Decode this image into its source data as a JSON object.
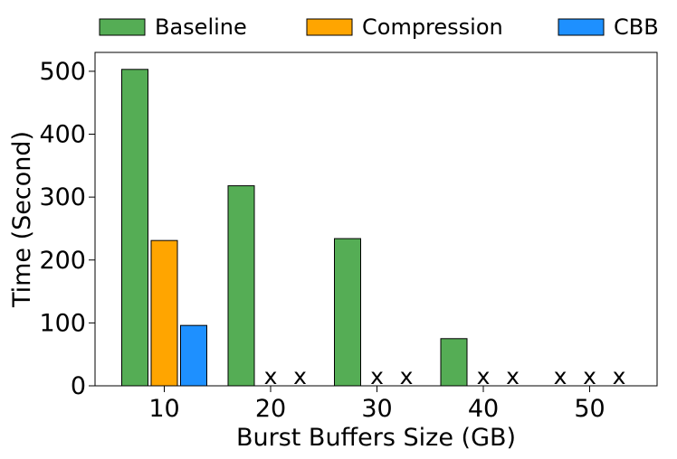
{
  "chart_data": {
    "type": "bar",
    "xlabel": "Burst Buffers Size (GB)",
    "ylabel": "Time (Second)",
    "categories": [
      "10",
      "20",
      "30",
      "40",
      "50"
    ],
    "ylim": [
      0,
      530
    ],
    "yticks": [
      "0",
      "100",
      "200",
      "300",
      "400",
      "500"
    ],
    "legend_position": "top",
    "missing_marker": "x",
    "series": [
      {
        "name": "Baseline",
        "color": "#55ad55",
        "values": [
          503,
          318,
          234,
          75,
          null
        ]
      },
      {
        "name": "Compression",
        "color": "#ffa500",
        "values": [
          231,
          null,
          null,
          null,
          null
        ]
      },
      {
        "name": "CBB",
        "color": "#1e90ff",
        "values": [
          96,
          null,
          null,
          null,
          null
        ]
      }
    ]
  }
}
